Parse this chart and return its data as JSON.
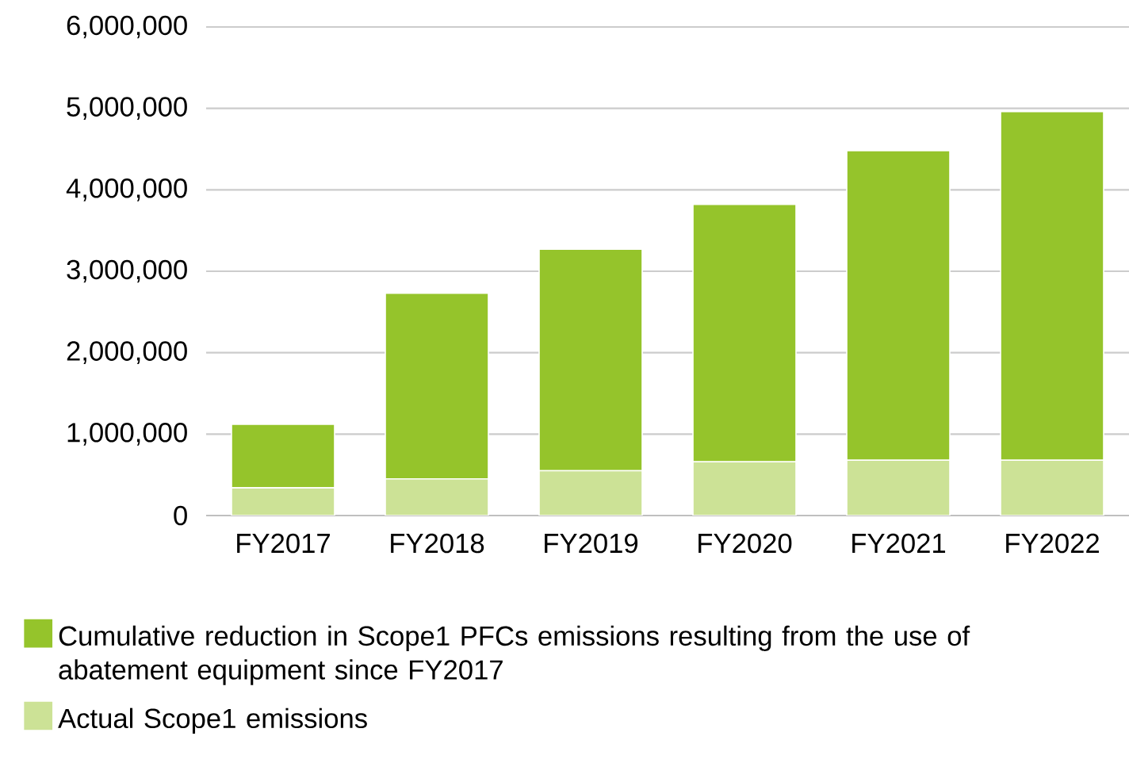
{
  "chart_data": {
    "type": "bar",
    "stacked": true,
    "categories": [
      "FY2017",
      "FY2018",
      "FY2019",
      "FY2020",
      "FY2021",
      "FY2022"
    ],
    "series": [
      {
        "name": "Actual Scope1 emissions",
        "color": "#cce296",
        "values": [
          340000,
          450000,
          550000,
          660000,
          680000,
          680000
        ]
      },
      {
        "name": "Cumulative reduction in Scope1 PFCs emissions resulting from the use of abatement equipment since FY2017",
        "color": "#95c42b",
        "values": [
          780000,
          2280000,
          2720000,
          3160000,
          3800000,
          4280000
        ]
      }
    ],
    "ylim": [
      0,
      6000000
    ],
    "yticks": [
      0,
      {
        "value": 1000000,
        "label": "1,000,000"
      },
      {
        "value": 2000000,
        "label": "2,000,000"
      },
      {
        "value": 3000000,
        "label": "3,000,000"
      },
      {
        "value": 4000000,
        "label": "4,000,000"
      },
      {
        "value": 5000000,
        "label": "5,000,000"
      },
      {
        "value": 6000000,
        "label": "6,000,000"
      }
    ],
    "grid": "y",
    "legend": "bottom"
  }
}
